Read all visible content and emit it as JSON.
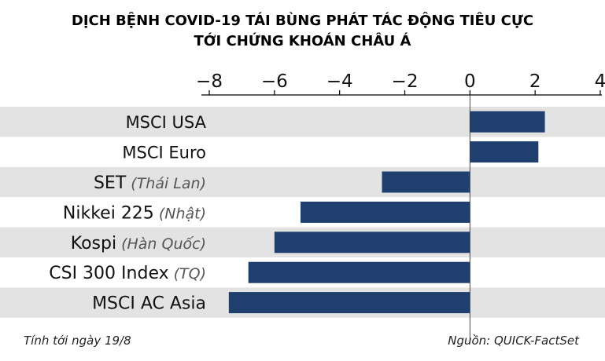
{
  "title_lines": [
    "DỊCH BỆNH COVID-19 TÁI BÙNG PHÁT TÁC ĐỘNG TIÊU CỰC",
    "TỚI CHỨNG KHOÁN CHÂU Á"
  ],
  "footer": {
    "left": "Tính tới ngày 19/8",
    "right": "Nguồn: QUICK-FactSet"
  },
  "colors": {
    "bar": "#1f3f6e",
    "band": "#e3e3e3",
    "note": "#555555",
    "axis": "#000000"
  },
  "chart_data": {
    "type": "bar",
    "orientation": "horizontal",
    "xlim": [
      -8,
      4
    ],
    "ticks": [
      -8,
      -6,
      -4,
      -2,
      0,
      2,
      4
    ],
    "tick_labels": [
      "−8",
      "−6",
      "−4",
      "−2",
      "0",
      "2",
      "4"
    ],
    "categories": [
      {
        "name": "MSCI USA",
        "note": "",
        "value": 2.3
      },
      {
        "name": "MSCI Euro",
        "note": "",
        "value": 2.1
      },
      {
        "name": "SET",
        "note": "(Thái Lan)",
        "value": -2.7
      },
      {
        "name": "Nikkei 225",
        "note": "(Nhật)",
        "value": -5.2
      },
      {
        "name": "Kospi",
        "note": "(Hàn Quốc)",
        "value": -6.0
      },
      {
        "name": "CSI 300 Index",
        "note": "(TQ)",
        "value": -6.8
      },
      {
        "name": "MSCI AC Asia",
        "note": "",
        "value": -7.4
      }
    ]
  }
}
